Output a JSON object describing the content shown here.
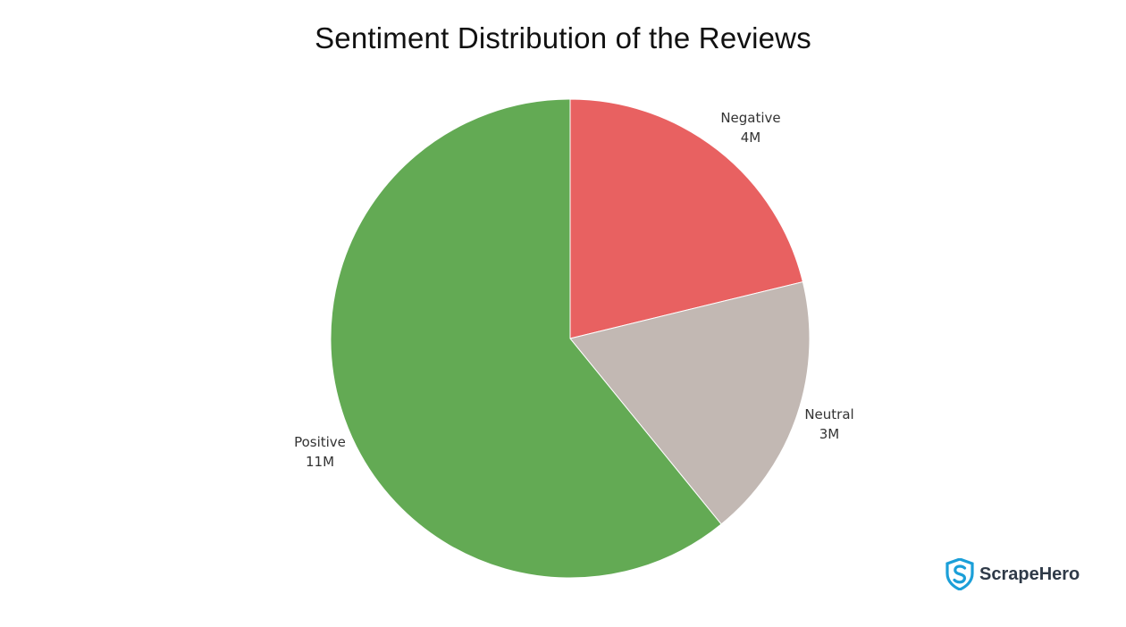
{
  "chart_data": {
    "type": "pie",
    "title": "Sentiment Distribution of the Reviews",
    "start_angle_deg": 0,
    "direction": "clockwise",
    "slices": [
      {
        "label": "Negative",
        "value_label": "4M",
        "value": 3.9,
        "color": "#e86161"
      },
      {
        "label": "Neutral",
        "value_label": "3M",
        "value": 3.3,
        "color": "#c2b8b3"
      },
      {
        "label": "Positive",
        "value_label": "11M",
        "value": 11.2,
        "color": "#63aa54"
      }
    ]
  },
  "branding": {
    "logo_text": "ScrapeHero",
    "logo_icon": "shield-s-icon",
    "logo_color": "#1b9fd8"
  }
}
